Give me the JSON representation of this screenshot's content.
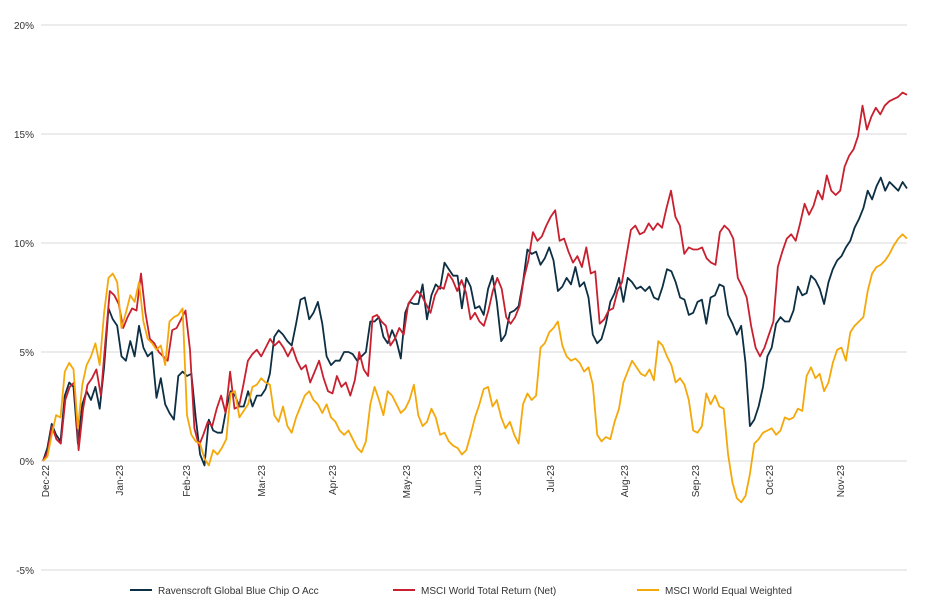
{
  "chart_data": {
    "type": "line",
    "y_ticks": [
      "20%",
      "15%",
      "10%",
      "5%",
      "0%",
      "-5%"
    ],
    "y_tick_values": [
      20,
      15,
      10,
      5,
      0,
      -5
    ],
    "ylim": [
      -5,
      20
    ],
    "x_ticks": [
      "Dec-22",
      "Jan-23",
      "Feb-23",
      "Mar-23",
      "Apr-23",
      "May-23",
      "Jun-23",
      "Jul-23",
      "Aug-23",
      "Sep-23",
      "Oct-23",
      "Nov-23"
    ],
    "grid": true,
    "legend_position": "bottom",
    "series": [
      {
        "name": "Ravenscroft Global Blue Chip O Acc",
        "color": "#0d2f44",
        "values": [
          0,
          0.6,
          1.7,
          1.2,
          0.9,
          3.0,
          3.6,
          3.4,
          0.8,
          2.6,
          3.2,
          2.8,
          3.4,
          2.4,
          4.3,
          7.0,
          6.5,
          6.2,
          4.8,
          4.6,
          5.5,
          4.8,
          6.2,
          5.2,
          4.8,
          5.0,
          2.9,
          3.8,
          2.6,
          2.2,
          1.9,
          3.9,
          4.1,
          3.9,
          4.0,
          2.0,
          0.3,
          -0.2,
          1.9,
          1.4,
          1.3,
          1.3,
          2.4,
          3.2,
          3.0,
          2.5,
          2.5,
          3.2,
          2.5,
          3.0,
          3.0,
          3.3,
          4.0,
          5.7,
          6.0,
          5.8,
          5.5,
          5.3,
          6.3,
          7.4,
          7.5,
          6.5,
          6.8,
          7.3,
          6.3,
          4.8,
          4.4,
          4.6,
          4.6,
          5.0,
          5.0,
          4.9,
          4.6,
          4.8,
          5.0,
          6.4,
          6.4,
          6.6,
          5.7,
          5.4,
          6.0,
          5.5,
          4.7,
          6.8,
          7.3,
          7.2,
          7.2,
          8.1,
          6.5,
          7.6,
          8.1,
          7.9,
          9.1,
          8.8,
          8.5,
          8.5,
          7.0,
          8.4,
          8.0,
          7.0,
          7.1,
          6.7,
          7.9,
          8.5,
          7.3,
          5.5,
          5.8,
          6.8,
          6.9,
          7.1,
          8.2,
          9.7,
          9.5,
          9.6,
          9.0,
          9.3,
          9.8,
          9.2,
          7.8,
          8.0,
          8.4,
          8.1,
          8.9,
          8.0,
          8.2,
          7.5,
          5.8,
          5.4,
          5.6,
          6.3,
          7.3,
          7.7,
          8.4,
          7.3,
          8.4,
          8.2,
          7.9,
          8.0,
          7.8,
          8.0,
          7.5,
          7.4,
          8.0,
          8.8,
          8.7,
          8.2,
          7.5,
          7.4,
          6.7,
          6.8,
          7.3,
          7.4,
          6.3,
          7.5,
          7.6,
          8.1,
          8.0,
          6.7,
          6.3,
          5.8,
          6.2,
          4.5,
          1.6,
          1.9,
          2.5,
          3.4,
          4.8,
          5.2,
          6.3,
          6.6,
          6.4,
          6.4,
          6.9,
          8.0,
          7.6,
          7.7,
          8.5,
          8.3,
          7.9,
          7.2,
          8.2,
          8.8,
          9.2,
          9.4,
          9.8,
          10.1,
          10.7,
          11.1,
          11.6,
          12.4,
          12.0,
          12.6,
          13.0,
          12.4,
          12.8,
          12.6,
          12.4,
          12.8,
          12.5
        ]
      },
      {
        "name": "MSCI World Total Return (Net)",
        "color": "#c8202f",
        "values": [
          0,
          0.4,
          1.6,
          1.0,
          0.8,
          2.8,
          3.4,
          3.6,
          0.5,
          2.4,
          3.5,
          3.8,
          4.2,
          3.0,
          5.5,
          7.8,
          7.6,
          7.2,
          6.1,
          6.6,
          7.0,
          6.9,
          8.6,
          6.8,
          5.6,
          5.4,
          5.0,
          4.8,
          4.6,
          6.0,
          6.1,
          6.5,
          6.9,
          5.1,
          1.5,
          0.7,
          1.2,
          1.8,
          1.6,
          2.4,
          3.0,
          2.2,
          4.1,
          2.4,
          2.5,
          3.5,
          4.6,
          4.9,
          5.1,
          4.8,
          5.2,
          5.6,
          5.3,
          5.5,
          5.2,
          4.8,
          5.2,
          4.6,
          4.2,
          4.4,
          3.6,
          4.1,
          4.6,
          3.8,
          3.2,
          3.1,
          3.9,
          3.4,
          3.6,
          3.0,
          3.7,
          5.0,
          4.2,
          3.9,
          6.6,
          6.7,
          6.4,
          6.2,
          5.3,
          5.6,
          6.1,
          5.8,
          7.2,
          7.5,
          7.8,
          7.6,
          7.2,
          6.8,
          7.6,
          8.0,
          7.9,
          8.6,
          8.3,
          7.8,
          8.3,
          7.7,
          6.5,
          6.8,
          6.4,
          6.2,
          6.9,
          7.8,
          8.4,
          7.9,
          6.6,
          6.3,
          6.6,
          7.1,
          8.4,
          9.2,
          10.5,
          10.1,
          10.3,
          10.8,
          11.2,
          11.5,
          10.1,
          10.2,
          9.6,
          9.1,
          9.4,
          8.9,
          9.8,
          8.6,
          8.7,
          6.3,
          6.5,
          6.9,
          7.0,
          7.8,
          8.2,
          9.4,
          10.6,
          10.8,
          10.4,
          10.5,
          10.9,
          10.6,
          10.9,
          10.7,
          11.6,
          12.4,
          11.2,
          10.8,
          9.5,
          9.8,
          9.7,
          9.7,
          9.8,
          9.3,
          9.1,
          9.0,
          10.5,
          10.8,
          10.6,
          10.2,
          8.4,
          8.0,
          7.5,
          6.2,
          5.2,
          4.8,
          5.2,
          5.8,
          6.4,
          8.9,
          9.6,
          10.2,
          10.4,
          10.1,
          10.9,
          11.8,
          11.3,
          11.7,
          12.4,
          12.0,
          13.1,
          12.4,
          12.2,
          12.4,
          13.5,
          14.0,
          14.3,
          14.9,
          16.3,
          15.2,
          15.8,
          16.2,
          15.9,
          16.3,
          16.5,
          16.6,
          16.7,
          16.9,
          16.8
        ]
      },
      {
        "name": "MSCI World Equal Weighted",
        "color": "#f5a80a",
        "values": [
          0,
          0.2,
          1.2,
          2.1,
          2.0,
          4.1,
          4.5,
          4.2,
          1.5,
          3.5,
          4.4,
          4.8,
          5.4,
          4.4,
          6.8,
          8.4,
          8.6,
          8.2,
          6.1,
          6.8,
          7.6,
          7.3,
          8.2,
          6.4,
          5.6,
          5.4,
          5.1,
          5.3,
          4.4,
          6.4,
          6.6,
          6.7,
          7.0,
          2.1,
          1.2,
          0.9,
          0.8,
          0.1,
          -0.2,
          0.5,
          0.3,
          0.6,
          1.0,
          3.1,
          3.2,
          2.0,
          2.3,
          2.6,
          3.4,
          3.5,
          3.8,
          3.6,
          3.5,
          2.1,
          1.8,
          2.5,
          1.6,
          1.3,
          2.0,
          2.5,
          3.0,
          3.2,
          2.8,
          2.6,
          2.2,
          2.6,
          2.0,
          1.8,
          1.4,
          1.2,
          1.4,
          1.0,
          0.6,
          0.4,
          0.9,
          2.6,
          3.4,
          2.8,
          2.1,
          3.2,
          3.0,
          2.6,
          2.2,
          2.4,
          2.8,
          3.5,
          2.1,
          1.6,
          1.8,
          2.4,
          2.0,
          1.2,
          1.3,
          0.9,
          0.7,
          0.6,
          0.3,
          0.5,
          1.2,
          2.0,
          2.6,
          3.3,
          3.4,
          2.5,
          2.8,
          2.0,
          1.5,
          1.8,
          1.2,
          0.8,
          2.6,
          3.1,
          2.8,
          3.0,
          5.2,
          5.4,
          5.9,
          6.1,
          6.4,
          5.3,
          4.8,
          4.6,
          4.7,
          4.5,
          4.1,
          4.3,
          3.5,
          1.2,
          0.9,
          1.1,
          1.0,
          1.8,
          2.4,
          3.6,
          4.1,
          4.6,
          4.3,
          4.0,
          3.9,
          4.2,
          3.7,
          5.5,
          5.3,
          4.8,
          4.4,
          3.6,
          3.8,
          3.5,
          2.8,
          1.4,
          1.3,
          1.6,
          3.1,
          2.6,
          3.0,
          2.5,
          2.4,
          0.3,
          -1.0,
          -1.7,
          -1.9,
          -1.6,
          -0.6,
          0.8,
          1.0,
          1.3,
          1.4,
          1.5,
          1.2,
          1.4,
          2.0,
          1.9,
          2.0,
          2.4,
          2.3,
          3.9,
          4.3,
          3.8,
          4.0,
          3.2,
          3.6,
          4.5,
          5.1,
          5.2,
          4.6,
          5.9,
          6.2,
          6.4,
          6.6,
          7.8,
          8.6,
          8.9,
          9.0,
          9.2,
          9.5,
          9.9,
          10.2,
          10.4,
          10.2
        ]
      }
    ]
  }
}
